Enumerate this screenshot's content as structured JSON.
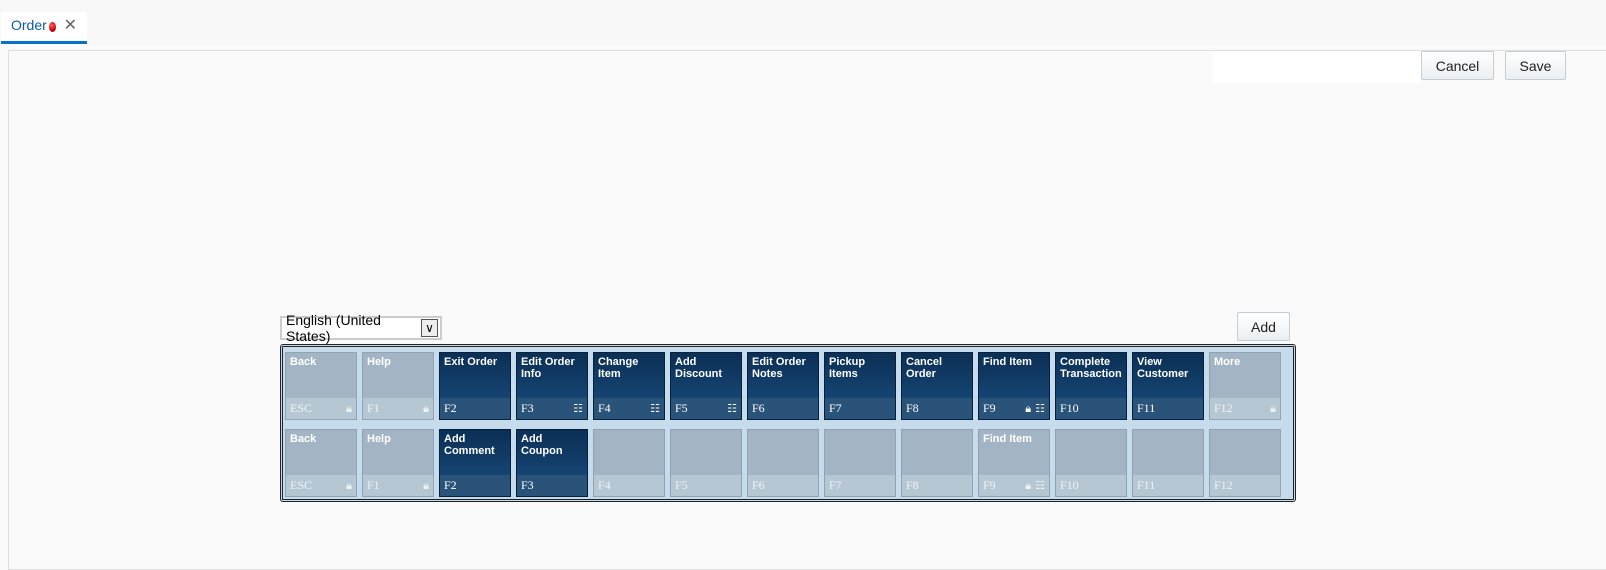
{
  "tabs": [
    {
      "label": "Order",
      "status": "unsaved",
      "close_icon": "close-icon"
    }
  ],
  "toolbar": {
    "cancel_label": "Cancel",
    "save_label": "Save"
  },
  "language_select": {
    "value": "English (United States)"
  },
  "add_label": "Add",
  "colors": {
    "active_tile": "#0b2f55",
    "inactive_tile": "#a3b5c5",
    "tab_accent": "#0572ce"
  },
  "rows": [
    [
      {
        "label": "Back",
        "key": "ESC",
        "active": false,
        "lock": true,
        "delete": false
      },
      {
        "label": "Help",
        "key": "F1",
        "active": false,
        "lock": true,
        "delete": false
      },
      {
        "label": "Exit Order",
        "key": "F2",
        "active": true,
        "lock": false,
        "delete": false
      },
      {
        "label": "Edit Order Info",
        "key": "F3",
        "active": true,
        "lock": false,
        "delete": true
      },
      {
        "label": "Change Item",
        "key": "F4",
        "active": true,
        "lock": false,
        "delete": true
      },
      {
        "label": "Add Discount",
        "key": "F5",
        "active": true,
        "lock": false,
        "delete": true
      },
      {
        "label": "Edit Order Notes",
        "key": "F6",
        "active": true,
        "lock": false,
        "delete": false
      },
      {
        "label": "Pickup Items",
        "key": "F7",
        "active": true,
        "lock": false,
        "delete": false
      },
      {
        "label": "Cancel Order",
        "key": "F8",
        "active": true,
        "lock": false,
        "delete": false
      },
      {
        "label": "Find Item",
        "key": "F9",
        "active": true,
        "lock": true,
        "delete": true
      },
      {
        "label": "Complete Transaction",
        "key": "F10",
        "active": true,
        "lock": false,
        "delete": false
      },
      {
        "label": "View Customer",
        "key": "F11",
        "active": true,
        "lock": false,
        "delete": false
      },
      {
        "label": "More",
        "key": "F12",
        "active": false,
        "lock": true,
        "delete": false
      }
    ],
    [
      {
        "label": "Back",
        "key": "ESC",
        "active": false,
        "lock": true,
        "delete": false
      },
      {
        "label": "Help",
        "key": "F1",
        "active": false,
        "lock": true,
        "delete": false
      },
      {
        "label": "Add Comment",
        "key": "F2",
        "active": true,
        "lock": false,
        "delete": false
      },
      {
        "label": "Add Coupon",
        "key": "F3",
        "active": true,
        "lock": false,
        "delete": false
      },
      {
        "label": "",
        "key": "F4",
        "active": false,
        "lock": false,
        "delete": false
      },
      {
        "label": "",
        "key": "F5",
        "active": false,
        "lock": false,
        "delete": false
      },
      {
        "label": "",
        "key": "F6",
        "active": false,
        "lock": false,
        "delete": false
      },
      {
        "label": "",
        "key": "F7",
        "active": false,
        "lock": false,
        "delete": false
      },
      {
        "label": "",
        "key": "F8",
        "active": false,
        "lock": false,
        "delete": false
      },
      {
        "label": "Find Item",
        "key": "F9",
        "active": false,
        "lock": true,
        "delete": true
      },
      {
        "label": "",
        "key": "F10",
        "active": false,
        "lock": false,
        "delete": false
      },
      {
        "label": "",
        "key": "F11",
        "active": false,
        "lock": false,
        "delete": false
      },
      {
        "label": "",
        "key": "F12",
        "active": false,
        "lock": false,
        "delete": false
      }
    ]
  ]
}
